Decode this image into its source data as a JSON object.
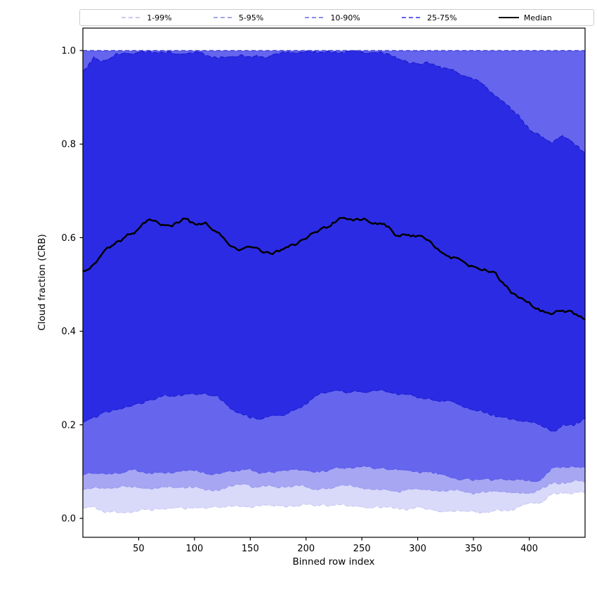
{
  "legend": {
    "items": [
      {
        "label": "1-99%",
        "color": "#c9c9f1",
        "style": "dashed",
        "thickness": 1.5
      },
      {
        "label": "5-95%",
        "color": "#a4a4ec",
        "style": "dashed",
        "thickness": 1.5
      },
      {
        "label": "10-90%",
        "color": "#8b8bf0",
        "style": "dashed",
        "thickness": 1.5
      },
      {
        "label": "25-75%",
        "color": "#6161ec",
        "style": "dashed",
        "thickness": 2
      },
      {
        "label": "Median",
        "color": "#000000",
        "style": "solid",
        "thickness": 2.5
      }
    ]
  },
  "axes": {
    "xlabel": "Binned row index",
    "ylabel": "Cloud fraction (CRB)"
  },
  "chart_data": {
    "type": "area",
    "subtype": "percentile-band-fan",
    "title": "",
    "xlabel": "Binned row index",
    "ylabel": "Cloud fraction (CRB)",
    "xlim": [
      0,
      450
    ],
    "ylim": [
      -0.0405,
      1.048
    ],
    "xticks": [
      50,
      100,
      150,
      200,
      250,
      300,
      350,
      400
    ],
    "yticks": [
      0.0,
      0.2,
      0.4,
      0.6,
      0.8,
      1.0
    ],
    "grid": false,
    "legend_position": "top-outside-horizontal",
    "x": [
      0,
      10,
      20,
      30,
      40,
      50,
      60,
      70,
      80,
      90,
      100,
      110,
      120,
      130,
      140,
      150,
      160,
      170,
      180,
      190,
      200,
      210,
      220,
      230,
      240,
      250,
      260,
      270,
      280,
      290,
      300,
      310,
      320,
      330,
      340,
      350,
      360,
      370,
      380,
      390,
      400,
      410,
      420,
      430,
      440,
      450
    ],
    "bands": [
      {
        "name": "1-99%",
        "fill": "#d9d9fa",
        "edge": "#c9c9f1",
        "upper_const": 1.0,
        "lower": [
          0.022,
          0.023,
          0.012,
          0.013,
          0.015,
          0.016,
          0.018,
          0.02,
          0.021,
          0.022,
          0.023,
          0.024,
          0.024,
          0.026,
          0.027,
          0.026,
          0.025,
          0.027,
          0.028,
          0.028,
          0.027,
          0.026,
          0.026,
          0.027,
          0.026,
          0.025,
          0.024,
          0.023,
          0.022,
          0.021,
          0.02,
          0.019,
          0.018,
          0.017,
          0.016,
          0.016,
          0.015,
          0.016,
          0.018,
          0.025,
          0.03,
          0.035,
          0.05,
          0.053,
          0.05,
          0.055
        ]
      },
      {
        "name": "5-95%",
        "fill": "#a6a6f3",
        "edge": "#9a9aee",
        "upper_const": 1.0,
        "lower": [
          0.062,
          0.065,
          0.066,
          0.067,
          0.067,
          0.066,
          0.065,
          0.064,
          0.064,
          0.065,
          0.064,
          0.063,
          0.062,
          0.066,
          0.068,
          0.067,
          0.064,
          0.067,
          0.068,
          0.069,
          0.068,
          0.066,
          0.067,
          0.068,
          0.067,
          0.065,
          0.063,
          0.062,
          0.06,
          0.059,
          0.058,
          0.057,
          0.056,
          0.056,
          0.055,
          0.055,
          0.056,
          0.057,
          0.057,
          0.058,
          0.057,
          0.058,
          0.075,
          0.078,
          0.077,
          0.078
        ]
      },
      {
        "name": "10-90%",
        "fill": "#6565ee",
        "edge": "#5c5ce6",
        "upper_const": 1.0,
        "lower": [
          0.092,
          0.096,
          0.099,
          0.1,
          0.1,
          0.1,
          0.099,
          0.098,
          0.098,
          0.099,
          0.099,
          0.098,
          0.096,
          0.104,
          0.106,
          0.104,
          0.098,
          0.103,
          0.104,
          0.106,
          0.104,
          0.102,
          0.105,
          0.108,
          0.11,
          0.108,
          0.106,
          0.104,
          0.102,
          0.101,
          0.099,
          0.098,
          0.094,
          0.09,
          0.088,
          0.086,
          0.085,
          0.083,
          0.082,
          0.085,
          0.083,
          0.082,
          0.105,
          0.112,
          0.11,
          0.108
        ]
      },
      {
        "name": "25-75%",
        "fill": "#2b2be4",
        "edge": "#1c1ccd",
        "lower": [
          0.205,
          0.215,
          0.227,
          0.234,
          0.24,
          0.245,
          0.25,
          0.256,
          0.262,
          0.264,
          0.263,
          0.264,
          0.262,
          0.24,
          0.225,
          0.215,
          0.213,
          0.218,
          0.225,
          0.235,
          0.25,
          0.262,
          0.27,
          0.274,
          0.272,
          0.268,
          0.272,
          0.27,
          0.268,
          0.264,
          0.262,
          0.258,
          0.252,
          0.248,
          0.24,
          0.234,
          0.23,
          0.221,
          0.214,
          0.207,
          0.2,
          0.193,
          0.184,
          0.198,
          0.202,
          0.212
        ],
        "upper": [
          0.958,
          0.985,
          0.978,
          0.992,
          0.994,
          0.994,
          0.995,
          0.995,
          0.994,
          0.993,
          0.992,
          0.99,
          0.988,
          0.987,
          0.986,
          0.985,
          0.988,
          0.992,
          0.995,
          0.996,
          0.997,
          0.998,
          0.998,
          0.998,
          0.998,
          0.998,
          0.998,
          0.995,
          0.985,
          0.979,
          0.975,
          0.973,
          0.968,
          0.958,
          0.95,
          0.938,
          0.925,
          0.905,
          0.882,
          0.862,
          0.835,
          0.82,
          0.802,
          0.816,
          0.8,
          0.78
        ]
      }
    ],
    "top_edge_line": {
      "value": 1.0,
      "color": "#3333d0",
      "style": "dashed"
    },
    "median": {
      "name": "Median",
      "color": "#000000",
      "width": 2.5,
      "values": [
        0.527,
        0.548,
        0.572,
        0.586,
        0.6,
        0.618,
        0.643,
        0.634,
        0.627,
        0.637,
        0.623,
        0.627,
        0.612,
        0.592,
        0.574,
        0.574,
        0.567,
        0.567,
        0.576,
        0.584,
        0.6,
        0.614,
        0.621,
        0.64,
        0.645,
        0.64,
        0.636,
        0.635,
        0.612,
        0.609,
        0.605,
        0.601,
        0.578,
        0.562,
        0.553,
        0.541,
        0.533,
        0.519,
        0.492,
        0.47,
        0.457,
        0.442,
        0.434,
        0.446,
        0.438,
        0.428
      ]
    }
  }
}
